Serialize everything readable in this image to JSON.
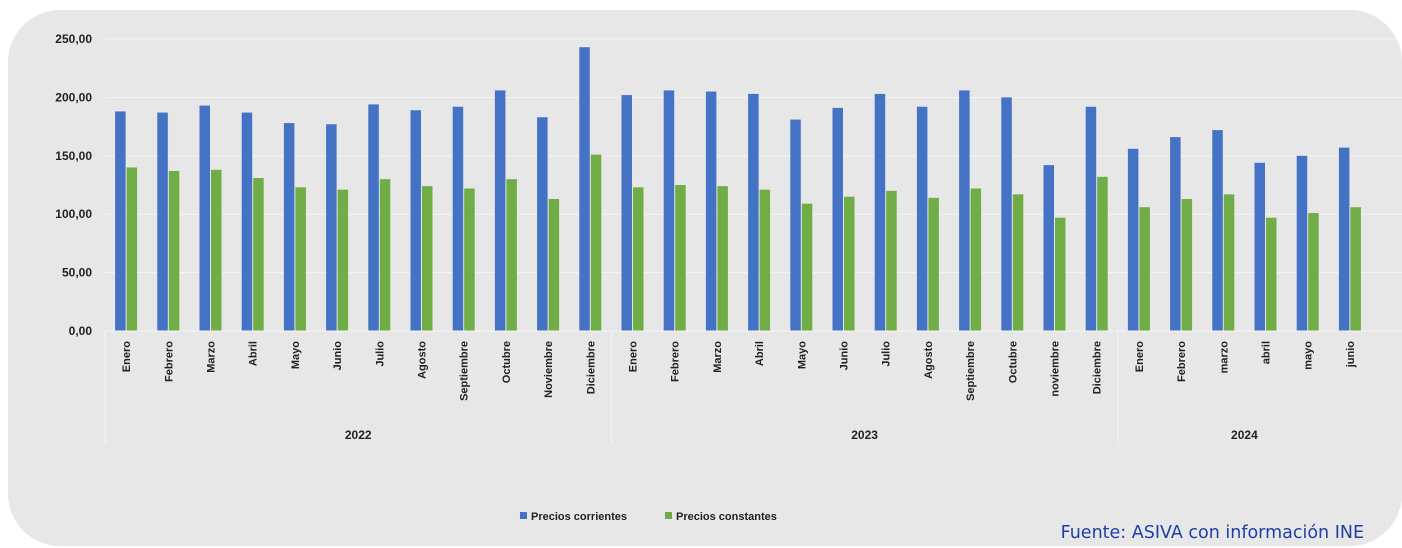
{
  "chart_data": {
    "type": "bar",
    "categories": [
      "Enero",
      "Febrero",
      "Marzo",
      "Abril",
      "Mayo",
      "Junio",
      "Julio",
      "Agosto",
      "Septiembre",
      "Octubre",
      "Noviembre",
      "Diciembre",
      "Enero",
      "Febrero",
      "Marzo",
      "Abril",
      "Mayo",
      "Junio",
      "Julio",
      "Agosto",
      "Septiembre",
      "Octubre",
      "noviembre",
      "Diciembre",
      "Enero",
      "Febrero",
      "marzo",
      "abril",
      "mayo",
      "junio"
    ],
    "groups": [
      {
        "label": "2022",
        "count": 12
      },
      {
        "label": "2023",
        "count": 12
      },
      {
        "label": "2024",
        "count": 6
      }
    ],
    "series": [
      {
        "name": "Precios corrientes",
        "color": "#4472c4",
        "values": [
          188,
          187,
          193,
          187,
          178,
          177,
          194,
          189,
          192,
          206,
          183,
          243,
          202,
          206,
          205,
          203,
          181,
          191,
          203,
          192,
          206,
          200,
          142,
          192,
          156,
          166,
          172,
          144,
          150,
          157
        ]
      },
      {
        "name": "Precios constantes",
        "color": "#70ad47",
        "values": [
          140,
          137,
          138,
          131,
          123,
          121,
          130,
          124,
          122,
          130,
          113,
          151,
          123,
          125,
          124,
          121,
          109,
          115,
          120,
          114,
          122,
          117,
          97,
          132,
          106,
          113,
          117,
          97,
          101,
          106
        ]
      }
    ],
    "ylim": [
      0,
      250
    ],
    "yticks": [
      "0,00",
      "50,00",
      "100,00",
      "150,00",
      "200,00",
      "250,00"
    ],
    "legend_position": "bottom",
    "grid": true
  },
  "source_note": "Fuente: ASIVA con información INE"
}
